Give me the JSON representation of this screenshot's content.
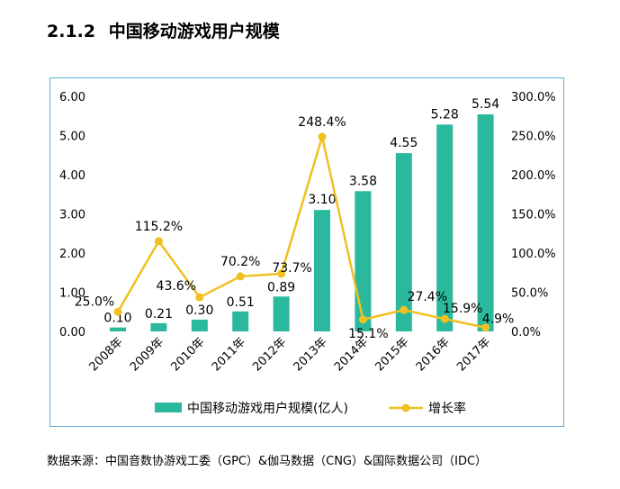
{
  "header": {
    "section_number": "2.1.2",
    "title": "中国移动游戏用户规模"
  },
  "footer": {
    "source": "数据来源：中国音数协游戏工委（GPC）&伽马数据（CNG）&国际数据公司（IDC）"
  },
  "colors": {
    "bar": "#2ab99d",
    "line": "#f0c020",
    "frame": "#5fa8d3"
  },
  "chart_data": {
    "type": "bar",
    "categories": [
      "2008年",
      "2009年",
      "2010年",
      "2011年",
      "2012年",
      "2013年",
      "2014年",
      "2015年",
      "2016年",
      "2017年"
    ],
    "series": [
      {
        "name": "中国移动游戏用户规模(亿人)",
        "type": "bar",
        "axis": "left",
        "values": [
          0.1,
          0.21,
          0.3,
          0.51,
          0.89,
          3.1,
          3.58,
          4.55,
          5.28,
          5.54
        ],
        "labels": [
          "0.10",
          "0.21",
          "0.30",
          "0.51",
          "0.89",
          "3.10",
          "3.58",
          "4.55",
          "5.28",
          "5.54"
        ]
      },
      {
        "name": "增长率",
        "type": "line",
        "axis": "right",
        "values": [
          25.0,
          115.2,
          43.6,
          70.2,
          73.7,
          248.4,
          15.1,
          27.4,
          15.9,
          4.9
        ],
        "labels": [
          "25.0%",
          "115.2%",
          "43.6%",
          "70.2%",
          "73.7%",
          "248.4%",
          "15.1%",
          "27.4%",
          "15.9%",
          "4.9%"
        ]
      }
    ],
    "y_left": {
      "ylim": [
        0,
        6
      ],
      "ticks": [
        "0.00",
        "1.00",
        "2.00",
        "3.00",
        "4.00",
        "5.00",
        "6.00"
      ]
    },
    "y_right": {
      "ylim": [
        0,
        300
      ],
      "ticks": [
        "0.0%",
        "50.0%",
        "100.0%",
        "150.0%",
        "200.0%",
        "250.0%",
        "300.0%"
      ]
    },
    "grid": false,
    "legend_position": "bottom"
  }
}
